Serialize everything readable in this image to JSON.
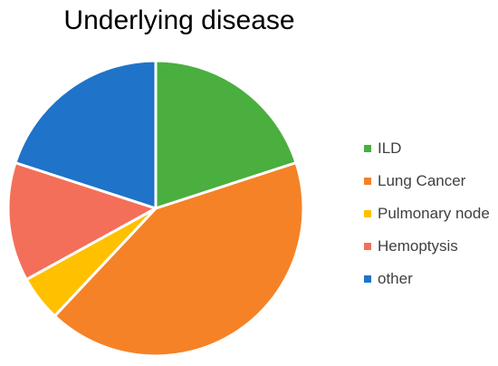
{
  "chart_data": {
    "type": "pie",
    "title": "Underlying disease",
    "legend_position": "right",
    "series": [
      {
        "name": "ILD",
        "value": 20,
        "color": "#4aaf3f"
      },
      {
        "name": "Lung Cancer",
        "value": 42,
        "color": "#f58227"
      },
      {
        "name": "Pulmonary node",
        "value": 5,
        "color": "#ffc000"
      },
      {
        "name": "Hemoptysis",
        "value": 13,
        "color": "#f46f5a"
      },
      {
        "name": "other",
        "value": 20,
        "color": "#1f73c8"
      }
    ]
  }
}
